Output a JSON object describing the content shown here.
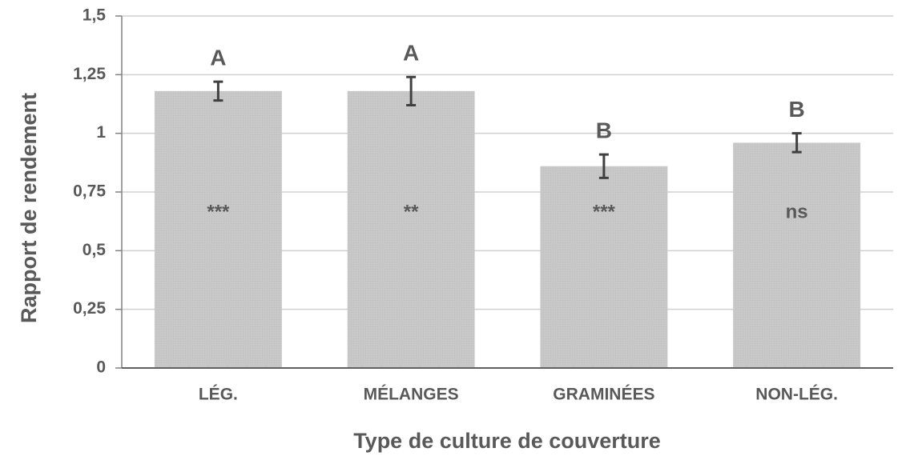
{
  "chart_data": {
    "type": "bar",
    "xlabel": "Type de culture de couverture",
    "ylabel": "Rapport de rendement",
    "categories": [
      "LÉG.",
      "MÉLANGES",
      "GRAMINÉES",
      "NON-LÉG."
    ],
    "values": [
      1.18,
      1.18,
      0.86,
      0.96
    ],
    "errors": [
      0.04,
      0.06,
      0.05,
      0.04
    ],
    "group_labels": [
      "A",
      "A",
      "B",
      "B"
    ],
    "significance": [
      "***",
      "**",
      "***",
      "ns"
    ],
    "color": "#c8c8c8",
    "ylim": [
      0,
      1.5
    ],
    "yticks": [
      0,
      {
        "value": 0.25,
        "label": "0,25"
      },
      {
        "value": 0.5,
        "label": "0,5"
      },
      {
        "value": 0.75,
        "label": "0,75"
      },
      1,
      {
        "value": 1.25,
        "label": "1,25"
      },
      {
        "value": 1.5,
        "label": "1,5"
      }
    ],
    "grid": true
  }
}
